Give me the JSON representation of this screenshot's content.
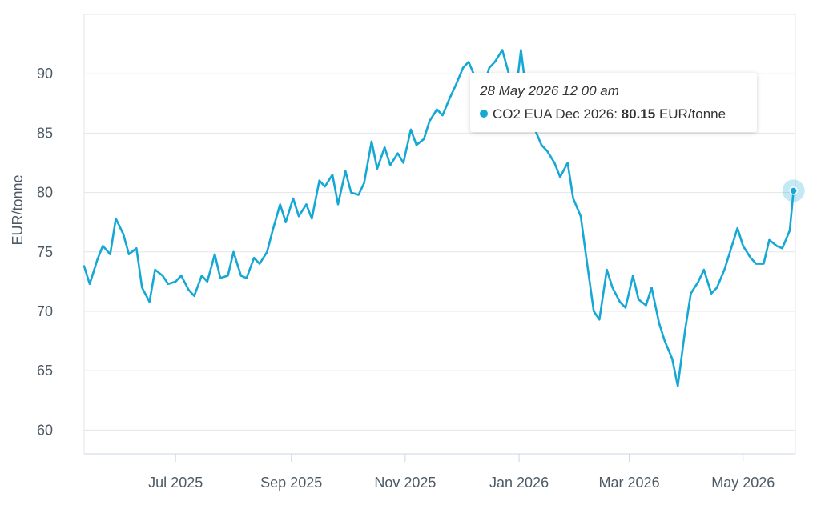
{
  "chart_data": {
    "type": "line",
    "ylabel": "EUR/tonne",
    "ylim": [
      58,
      95
    ],
    "y_ticks": [
      60,
      65,
      70,
      75,
      80,
      85,
      90
    ],
    "x_range": [
      "2025-05-13",
      "2026-05-29"
    ],
    "x_ticks": [
      {
        "date": "2025-07-01",
        "label": "Jul 2025"
      },
      {
        "date": "2025-09-01",
        "label": "Sep 2025"
      },
      {
        "date": "2025-11-01",
        "label": "Nov 2025"
      },
      {
        "date": "2026-01-01",
        "label": "Jan 2026"
      },
      {
        "date": "2026-03-01",
        "label": "Mar 2026"
      },
      {
        "date": "2026-05-01",
        "label": "May 2026"
      }
    ],
    "grid": true,
    "line_color": "#16a8d4",
    "series": [
      {
        "name": "CO2 EUA Dec 2026",
        "x": [
          "2025-05-13",
          "2025-05-16",
          "2025-05-20",
          "2025-05-23",
          "2025-05-27",
          "2025-05-30",
          "2025-06-03",
          "2025-06-06",
          "2025-06-10",
          "2025-06-13",
          "2025-06-17",
          "2025-06-20",
          "2025-06-24",
          "2025-06-27",
          "2025-07-01",
          "2025-07-04",
          "2025-07-08",
          "2025-07-11",
          "2025-07-15",
          "2025-07-18",
          "2025-07-22",
          "2025-07-25",
          "2025-07-29",
          "2025-08-01",
          "2025-08-05",
          "2025-08-08",
          "2025-08-12",
          "2025-08-15",
          "2025-08-19",
          "2025-08-22",
          "2025-08-26",
          "2025-08-29",
          "2025-09-02",
          "2025-09-05",
          "2025-09-09",
          "2025-09-12",
          "2025-09-16",
          "2025-09-19",
          "2025-09-23",
          "2025-09-26",
          "2025-09-30",
          "2025-10-03",
          "2025-10-07",
          "2025-10-10",
          "2025-10-14",
          "2025-10-17",
          "2025-10-21",
          "2025-10-24",
          "2025-10-28",
          "2025-10-31",
          "2025-11-04",
          "2025-11-07",
          "2025-11-11",
          "2025-11-14",
          "2025-11-18",
          "2025-11-21",
          "2025-11-25",
          "2025-11-28",
          "2025-12-02",
          "2025-12-05",
          "2025-12-09",
          "2025-12-12",
          "2025-12-16",
          "2025-12-19",
          "2025-12-23",
          "2025-12-30",
          "2026-01-02",
          "2026-01-06",
          "2026-01-09",
          "2026-01-13",
          "2026-01-16",
          "2026-01-20",
          "2026-01-23",
          "2026-01-27",
          "2026-01-30",
          "2026-02-03",
          "2026-02-06",
          "2026-02-10",
          "2026-02-13",
          "2026-02-17",
          "2026-02-20",
          "2026-02-24",
          "2026-02-27",
          "2026-03-03",
          "2026-03-06",
          "2026-03-10",
          "2026-03-13",
          "2026-03-17",
          "2026-03-20",
          "2026-03-24",
          "2026-03-27",
          "2026-03-31",
          "2026-04-03",
          "2026-04-07",
          "2026-04-10",
          "2026-04-14",
          "2026-04-17",
          "2026-04-21",
          "2026-04-24",
          "2026-04-28",
          "2026-05-01",
          "2026-05-05",
          "2026-05-08",
          "2026-05-12",
          "2026-05-15",
          "2026-05-19",
          "2026-05-22",
          "2026-05-26",
          "2026-05-28"
        ],
        "values": [
          73.8,
          72.3,
          74.3,
          75.5,
          74.8,
          77.8,
          76.5,
          74.8,
          75.3,
          72.0,
          70.8,
          73.5,
          73.0,
          72.3,
          72.5,
          73.0,
          71.8,
          71.3,
          73.0,
          72.5,
          74.8,
          72.8,
          73.0,
          75.0,
          73.0,
          72.8,
          74.5,
          74.0,
          75.0,
          76.8,
          79.0,
          77.5,
          79.5,
          78.0,
          79.0,
          77.8,
          81.0,
          80.5,
          81.5,
          79.0,
          81.8,
          80.0,
          79.8,
          80.8,
          84.3,
          82.0,
          83.8,
          82.3,
          83.3,
          82.5,
          85.3,
          84.0,
          84.5,
          86.0,
          87.0,
          86.5,
          88.0,
          89.0,
          90.5,
          91.0,
          89.5,
          88.3,
          90.5,
          91.0,
          92.0,
          88.0,
          92.0,
          87.0,
          85.5,
          84.0,
          83.5,
          82.5,
          81.3,
          82.5,
          79.5,
          78.0,
          74.5,
          70.0,
          69.3,
          73.5,
          72.0,
          70.8,
          70.3,
          73.0,
          71.0,
          70.5,
          72.0,
          69.0,
          67.5,
          66.0,
          63.7,
          68.5,
          71.5,
          72.5,
          73.5,
          71.5,
          72.0,
          73.5,
          75.0,
          77.0,
          75.5,
          74.5,
          74.0,
          74.0,
          76.0,
          75.5,
          75.3,
          76.8,
          80.15
        ]
      }
    ],
    "tooltip": {
      "date": "28 May 2026 12 00 am",
      "series": "CO2 EUA Dec 2026",
      "value": "80.15",
      "unit": "EUR/tonne"
    }
  }
}
